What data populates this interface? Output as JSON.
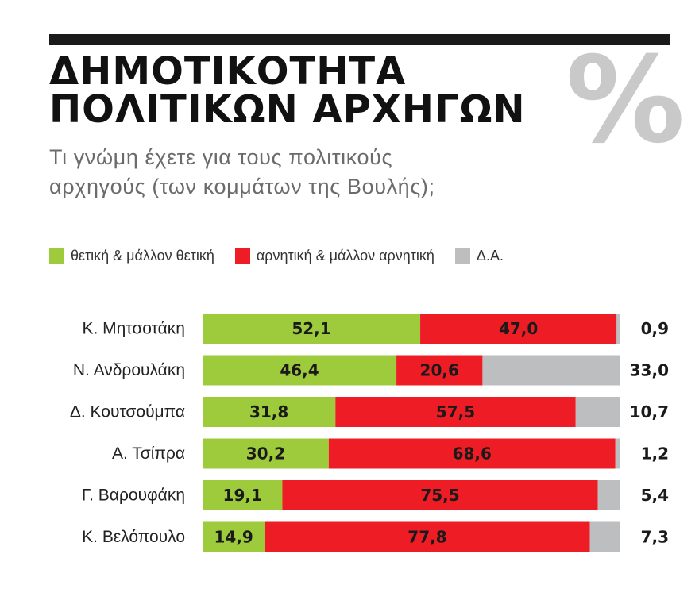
{
  "header": {
    "title_line1": "ΔΗΜΟΤΙΚΟΤΗΤΑ",
    "title_line2": "ΠΟΛΙΤΙΚΩΝ ΑΡΧΗΓΩΝ",
    "percent_symbol": "%",
    "subtitle_line1": "Τι γνώμη έχετε για τους πολιτικούς",
    "subtitle_line2": "αρχηγούς (των κομμάτων της Βουλής);"
  },
  "colors": {
    "positive": "#9ecb3c",
    "negative": "#ee1c25",
    "no_answer": "#bcbec0"
  },
  "chart_data": {
    "type": "bar",
    "orientation": "horizontal",
    "stacked": true,
    "categories": [
      "Κ. Μητσοτάκη",
      "Ν. Ανδρουλάκη",
      "Δ. Κουτσούμπα",
      "Α. Τσίπρα",
      "Γ. Βαρουφάκη",
      "Κ. Βελόπουλο"
    ],
    "series": [
      {
        "name": "θετική & μάλλον θετική",
        "labels": [
          "52,1",
          "46,4",
          "31,8",
          "30,2",
          "19,1",
          "14,9"
        ],
        "values": [
          52.1,
          46.4,
          31.8,
          30.2,
          19.1,
          14.9
        ]
      },
      {
        "name": "αρνητική & μάλλον αρνητική",
        "labels": [
          "47,0",
          "20,6",
          "57,5",
          "68,6",
          "75,5",
          "77,8"
        ],
        "values": [
          47.0,
          20.6,
          57.5,
          68.6,
          75.5,
          77.8
        ]
      },
      {
        "name": "Δ.Α.",
        "labels": [
          "0,9",
          "33,0",
          "10,7",
          "1,2",
          "5,4",
          "7,3"
        ],
        "values": [
          0.9,
          33.0,
          10.7,
          1.2,
          5.4,
          7.3
        ]
      }
    ],
    "xlim": [
      0,
      100
    ],
    "legend_position": "top-left",
    "grid": false
  }
}
